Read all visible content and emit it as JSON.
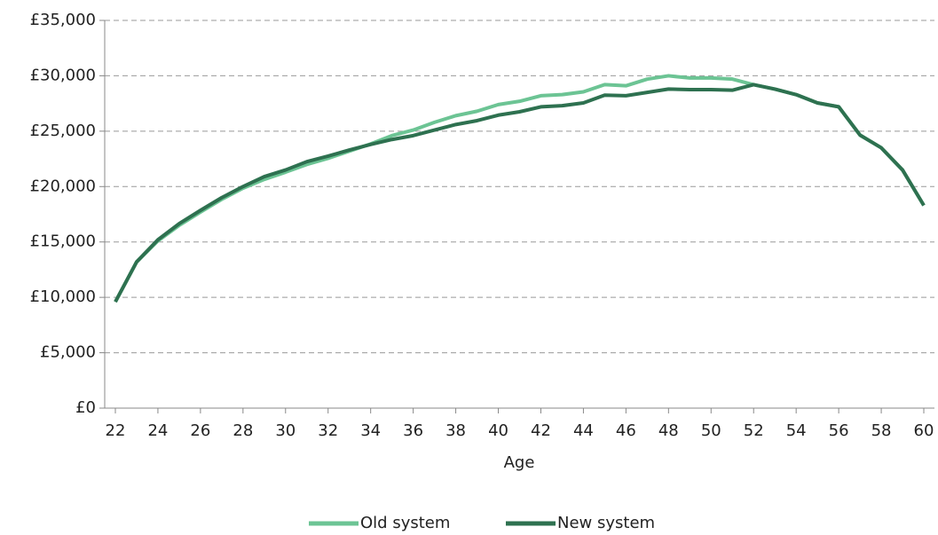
{
  "chart_data": {
    "type": "line",
    "x_label": "Age",
    "x": [
      22,
      23,
      24,
      25,
      26,
      27,
      28,
      29,
      30,
      31,
      32,
      33,
      34,
      35,
      36,
      37,
      38,
      39,
      40,
      41,
      42,
      43,
      44,
      45,
      46,
      47,
      48,
      49,
      50,
      51,
      52,
      53,
      54,
      55,
      56,
      57,
      58,
      59,
      60
    ],
    "series": [
      {
        "name": "Old system",
        "color": "#6cc494",
        "values": [
          9600,
          13200,
          15100,
          16500,
          17700,
          18850,
          19850,
          20650,
          21300,
          22000,
          22550,
          23200,
          23850,
          24600,
          25100,
          25800,
          26400,
          26800,
          27400,
          27700,
          28200,
          28300,
          28550,
          29200,
          29100,
          29700,
          30000,
          29800,
          29800,
          29700,
          29200,
          28800,
          28300,
          27550,
          27200,
          24650,
          23500,
          21500,
          18300
        ]
      },
      {
        "name": "New system",
        "color": "#2e7150",
        "values": [
          9600,
          13200,
          15200,
          16650,
          17850,
          19000,
          20000,
          20900,
          21500,
          22250,
          22750,
          23300,
          23800,
          24250,
          24600,
          25100,
          25600,
          25950,
          26450,
          26750,
          27200,
          27300,
          27550,
          28250,
          28200,
          28500,
          28800,
          28750,
          28750,
          28700,
          29200,
          28800,
          28300,
          27550,
          27200,
          24650,
          23500,
          21500,
          18300
        ]
      }
    ],
    "xlim": [
      21.5,
      60.5
    ],
    "xticks": [
      22,
      24,
      26,
      28,
      30,
      32,
      34,
      36,
      38,
      40,
      42,
      44,
      46,
      48,
      50,
      52,
      54,
      56,
      58,
      60
    ],
    "ylim": [
      0,
      35000
    ],
    "yticks": [
      {
        "value": 0,
        "label": "£0"
      },
      {
        "value": 5000,
        "label": "£5,000"
      },
      {
        "value": 10000,
        "label": "£10,000"
      },
      {
        "value": 15000,
        "label": "£15,000"
      },
      {
        "value": 20000,
        "label": "£20,000"
      },
      {
        "value": 25000,
        "label": "£25,000"
      },
      {
        "value": 30000,
        "label": "£30,000"
      },
      {
        "value": 35000,
        "label": "£35,000"
      }
    ],
    "grid": true,
    "legend": "bottom"
  }
}
